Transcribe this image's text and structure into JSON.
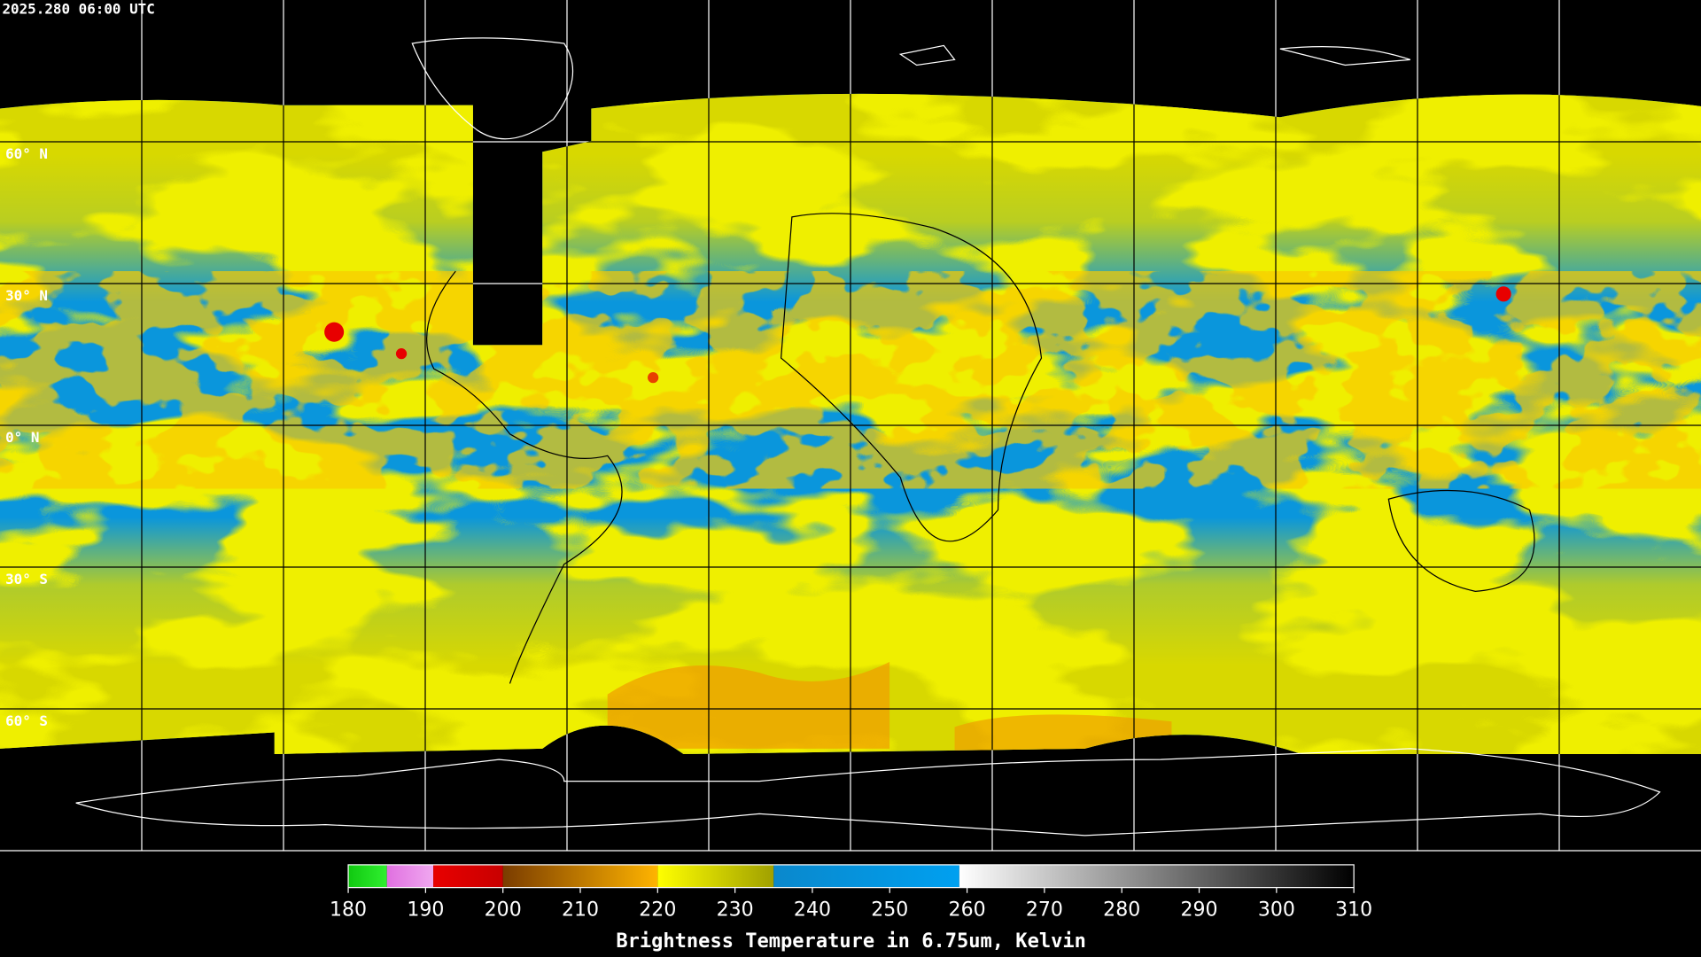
{
  "header": {
    "timestamp": "2025.280 06:00 UTC"
  },
  "map": {
    "ylim": [
      -90,
      90
    ],
    "lat_ticks": [
      {
        "value": 60,
        "label": "60° N"
      },
      {
        "value": 30,
        "label": "30° N"
      },
      {
        "value": 0,
        "label": "0° N"
      },
      {
        "value": -30,
        "label": "30° S"
      },
      {
        "value": -60,
        "label": "60° S"
      }
    ]
  },
  "colorbar": {
    "title": "Brightness Temperature in 6.75um, Kelvin",
    "lim": [
      180,
      310
    ],
    "ticks": [
      180,
      190,
      200,
      210,
      220,
      230,
      240,
      250,
      260,
      270,
      280,
      290,
      300,
      310
    ],
    "segments": [
      {
        "from": 180,
        "to": 185,
        "colors": [
          "#10c810",
          "#30f030"
        ]
      },
      {
        "from": 185,
        "to": 191,
        "colors": [
          "#e070e0",
          "#f0a8f0"
        ]
      },
      {
        "from": 191,
        "to": 200,
        "colors": [
          "#e80000",
          "#c80000"
        ]
      },
      {
        "from": 200,
        "to": 220,
        "colors": [
          "#7a3c00",
          "#ffb400"
        ]
      },
      {
        "from": 220,
        "to": 235,
        "colors": [
          "#ffff00",
          "#a0a000"
        ]
      },
      {
        "from": 235,
        "to": 259,
        "colors": [
          "#0a88cc",
          "#00a0f0"
        ]
      },
      {
        "from": 259,
        "to": 310,
        "colors": [
          "#ffffff",
          "#000000"
        ]
      }
    ]
  }
}
